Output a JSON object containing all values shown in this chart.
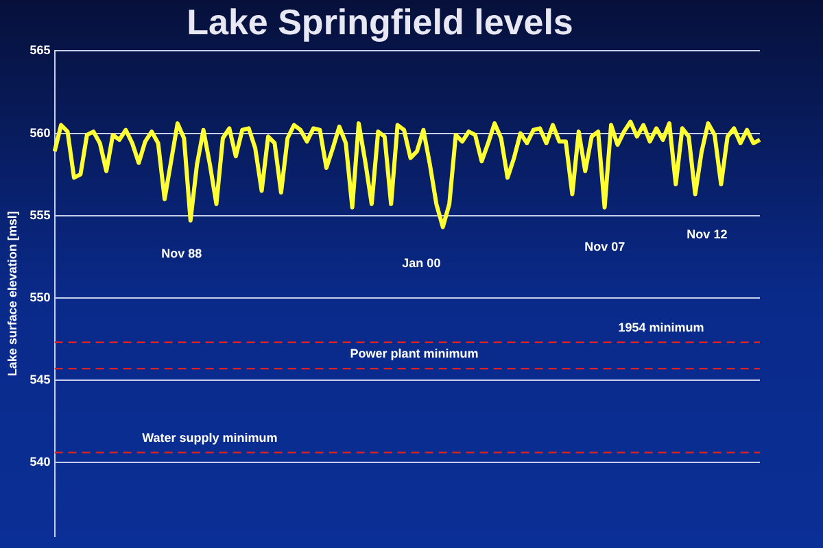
{
  "chart_data": {
    "type": "line",
    "title": "Lake Springfield levels",
    "ylabel": "Lake surface elevation [msl]",
    "categories": [
      null,
      null,
      null,
      null,
      null,
      null,
      null,
      null,
      null,
      null,
      null,
      null,
      null,
      null,
      null,
      null,
      null,
      null,
      null,
      null,
      null,
      null,
      null,
      null,
      null,
      null,
      null,
      null,
      null,
      null,
      null,
      null,
      null,
      null,
      null,
      null,
      null,
      null,
      null,
      null,
      null,
      null,
      null,
      null,
      null,
      null,
      null,
      null,
      null,
      null,
      null,
      null,
      null,
      null,
      null,
      null,
      null,
      null,
      null,
      null,
      null,
      null,
      null,
      null,
      null,
      null,
      null,
      null,
      null,
      null,
      null,
      null,
      null,
      null,
      null,
      null,
      null,
      null,
      null,
      null,
      null,
      null,
      null,
      null,
      null,
      null,
      null,
      null,
      null,
      null,
      null,
      null,
      null,
      null,
      null,
      null,
      null,
      null,
      null,
      null,
      null,
      null,
      null,
      null,
      null,
      null,
      null,
      null,
      null,
      null
    ],
    "series": [
      {
        "color": "#ffff33",
        "values": [
          558.9,
          560.5,
          560.1,
          557.3,
          557.5,
          559.9,
          560.1,
          559.4,
          557.7,
          559.9,
          559.6,
          560.2,
          559.4,
          558.2,
          559.5,
          560.1,
          559.4,
          556.0,
          558.3,
          560.6,
          559.7,
          554.7,
          558.1,
          560.2,
          558.1,
          555.7,
          559.7,
          560.3,
          558.6,
          560.2,
          560.3,
          559.1,
          556.5,
          559.8,
          559.4,
          556.4,
          559.7,
          560.5,
          560.2,
          559.5,
          560.3,
          560.2,
          557.9,
          559.1,
          560.4,
          559.4,
          555.5,
          560.6,
          558.3,
          555.7,
          560.1,
          559.8,
          555.7,
          560.5,
          560.2,
          558.5,
          558.9,
          560.2,
          558.1,
          555.7,
          554.3,
          555.7,
          559.9,
          559.5,
          560.1,
          559.9,
          558.3,
          559.4,
          560.6,
          559.7,
          557.3,
          558.5,
          560.0,
          559.4,
          560.2,
          560.3,
          559.4,
          560.5,
          559.5,
          559.5,
          556.3,
          560.1,
          557.7,
          559.8,
          560.1,
          555.5,
          560.5,
          559.3,
          560.1,
          560.7,
          559.8,
          560.5,
          559.5,
          560.3,
          559.6,
          560.6,
          556.9,
          560.3,
          559.8,
          556.3,
          558.9,
          560.6,
          559.9,
          556.9,
          559.8,
          560.3,
          559.4,
          560.2,
          559.4,
          559.6
        ]
      }
    ],
    "ylim": [
      535.5,
      565
    ],
    "yticks": [
      540,
      545,
      550,
      555,
      560,
      565
    ],
    "grid": "y",
    "marker": "none",
    "line_style": "solid",
    "tick_labels": "y",
    "ref_lines": [
      {
        "axis": "y",
        "value": 547.3,
        "label": "1954 minimum",
        "color": "#dd2222",
        "line_style": "dashed"
      },
      {
        "axis": "y",
        "value": 545.7,
        "label": "Power plant minimum",
        "color": "#dd2222",
        "line_style": "dashed"
      },
      {
        "axis": "y",
        "value": 540.6,
        "label": "Water supply minimum",
        "color": "#dd2222",
        "line_style": "dashed"
      }
    ],
    "annotations": [
      "Nov 88",
      "Jan 00",
      "Nov 07",
      "Nov 12"
    ]
  }
}
